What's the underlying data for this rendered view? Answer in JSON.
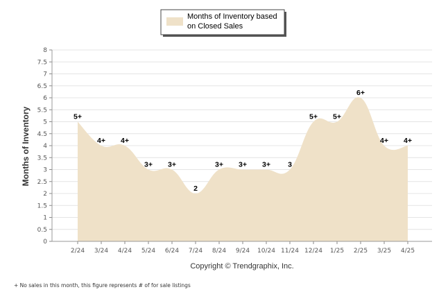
{
  "chart_data": {
    "type": "area",
    "categories": [
      "2/24",
      "3/24",
      "4/24",
      "5/24",
      "6/24",
      "7/24",
      "8/24",
      "9/24",
      "10/24",
      "11/24",
      "12/24",
      "1/25",
      "2/25",
      "3/25",
      "4/25"
    ],
    "series": [
      {
        "name": "Months of Inventory based on Closed Sales",
        "values": [
          5,
          4,
          4,
          3,
          3,
          2,
          3,
          3,
          3,
          3,
          5,
          5,
          6,
          4,
          4
        ]
      }
    ],
    "data_labels": [
      "5+",
      "4+",
      "4+",
      "3+",
      "3+",
      "2",
      "3+",
      "3+",
      "3+",
      "3",
      "5+",
      "5+",
      "6+",
      "4+",
      "4+"
    ],
    "y_ticks": [
      "0",
      "0.5",
      "1",
      "1.5",
      "2",
      "2.5",
      "3",
      "3.5",
      "4",
      "4.5",
      "5",
      "5.5",
      "6",
      "6.5",
      "7",
      "7.5",
      "8"
    ],
    "ylabel": "Months of Inventory",
    "xlabel": "",
    "ylim": [
      0,
      8
    ],
    "grid": true,
    "legend_position": "top-center",
    "fill_color": "#efe1c8",
    "grid_color": "#e4e4e4"
  },
  "copyright": "Copyright © Trendgraphix, Inc.",
  "footnote": "+ No sales in this month, this figure represents # of for sale listings"
}
